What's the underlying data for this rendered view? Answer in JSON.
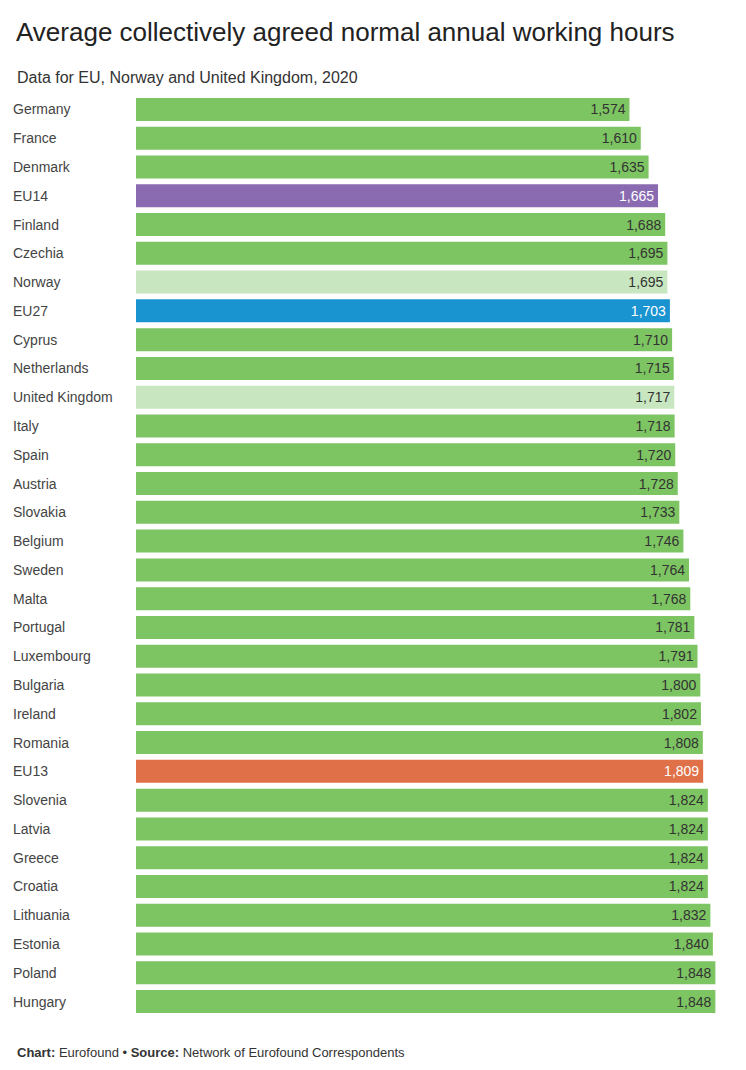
{
  "chart_data": {
    "type": "bar",
    "orientation": "horizontal",
    "title": "Average collectively agreed normal annual working hours",
    "subtitle": "Data for EU, Norway and United Kingdom, 2020",
    "caption": "Chart: Eurofound • Source: Network of Eurofound Correspondents",
    "categories": [
      "Germany",
      "France",
      "Denmark",
      "EU14",
      "Finland",
      "Czechia",
      "Norway",
      "EU27",
      "Cyprus",
      "Netherlands",
      "United Kingdom",
      "Italy",
      "Spain",
      "Austria",
      "Slovakia",
      "Belgium",
      "Sweden",
      "Malta",
      "Portugal",
      "Luxembourg",
      "Bulgaria",
      "Ireland",
      "Romania",
      "EU13",
      "Slovenia",
      "Latvia",
      "Greece",
      "Croatia",
      "Lithuania",
      "Estonia",
      "Poland",
      "Hungary"
    ],
    "values": [
      1574,
      1610,
      1635,
      1665,
      1688,
      1695,
      1695,
      1703,
      1710,
      1715,
      1717,
      1718,
      1720,
      1728,
      1733,
      1746,
      1764,
      1768,
      1781,
      1791,
      1800,
      1802,
      1808,
      1809,
      1824,
      1824,
      1824,
      1824,
      1832,
      1840,
      1848,
      1848
    ],
    "value_labels": [
      "1,574",
      "1,610",
      "1,635",
      "1,665",
      "1,688",
      "1,695",
      "1,695",
      "1,703",
      "1,710",
      "1,715",
      "1,717",
      "1,718",
      "1,720",
      "1,728",
      "1,733",
      "1,746",
      "1,764",
      "1,768",
      "1,781",
      "1,791",
      "1,800",
      "1,802",
      "1,808",
      "1,809",
      "1,824",
      "1,824",
      "1,824",
      "1,824",
      "1,832",
      "1,840",
      "1,848",
      "1,848"
    ],
    "colors": [
      "#7dc462",
      "#7dc462",
      "#7dc462",
      "#8a6bb1",
      "#7dc462",
      "#7dc462",
      "#c8e6c0",
      "#1a93d1",
      "#7dc462",
      "#7dc462",
      "#c8e6c0",
      "#7dc462",
      "#7dc462",
      "#7dc462",
      "#7dc462",
      "#7dc462",
      "#7dc462",
      "#7dc462",
      "#7dc462",
      "#7dc462",
      "#7dc462",
      "#7dc462",
      "#7dc462",
      "#e07048",
      "#7dc462",
      "#7dc462",
      "#7dc462",
      "#7dc462",
      "#7dc462",
      "#7dc462",
      "#7dc462",
      "#7dc462"
    ],
    "xlim": [
      0,
      1850
    ],
    "data_labels": true,
    "tick_labels": "y",
    "grid": false
  }
}
